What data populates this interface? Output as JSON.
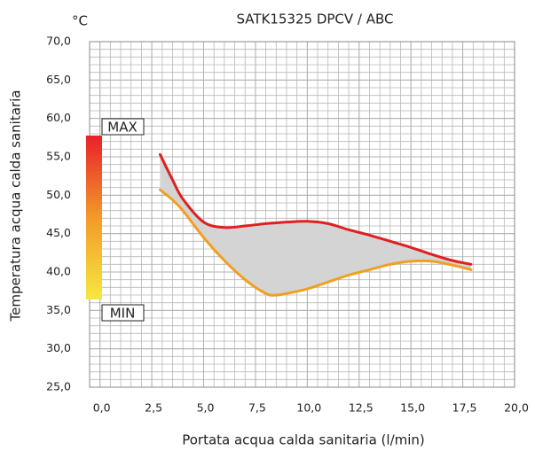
{
  "chart_data": {
    "type": "line",
    "title": "SATK15325 DPCV / ABC",
    "unit": "°C",
    "x_label": "Portata acqua calda sanitaria (l/min)",
    "y_label": "Temperatura acqua calda sanitaria",
    "scale_labels": [
      "MAX",
      "MIN"
    ],
    "x": [
      2.9,
      3.5,
      4,
      5,
      6,
      7,
      8,
      8.5,
      9,
      10,
      11,
      12,
      13,
      14,
      15,
      16,
      17,
      17.9
    ],
    "series": [
      {
        "color": "#e02020",
        "values": [
          55.3,
          52,
          49.5,
          46.5,
          45.8,
          46,
          46.3,
          46.4,
          46.5,
          46.6,
          46.3,
          45.5,
          44.8,
          44,
          43.2,
          42.3,
          41.5,
          41
        ]
      },
      {
        "color": "#f0a020",
        "values": [
          50.7,
          49.4,
          48,
          44.5,
          41.5,
          39,
          37.2,
          37,
          37.2,
          37.8,
          38.7,
          39.6,
          40.3,
          41,
          41.4,
          41.4,
          40.9,
          40.3
        ]
      }
    ],
    "fill_color": "#d4d4d4",
    "xlim": [
      -0.5,
      20
    ],
    "ylim": [
      25,
      70
    ],
    "xticks": [
      {
        "value": 0,
        "label": "0,0"
      },
      {
        "value": 2.5,
        "label": "2,5"
      },
      {
        "value": 5,
        "label": "5,0"
      },
      {
        "value": 7.5,
        "label": "7,5"
      },
      {
        "value": 10,
        "label": "10,0"
      },
      {
        "value": 12.5,
        "label": "12,5"
      },
      {
        "value": 15,
        "label": "15,0"
      },
      {
        "value": 17.5,
        "label": "17,5"
      },
      {
        "value": 20,
        "label": "20,0"
      }
    ],
    "yticks": [
      {
        "value": 25,
        "label": "25,0"
      },
      {
        "value": 30,
        "label": "30,0"
      },
      {
        "value": 35,
        "label": "35,0"
      },
      {
        "value": 40,
        "label": "40,0"
      },
      {
        "value": 45,
        "label": "45,0"
      },
      {
        "value": 50,
        "label": "50,0"
      },
      {
        "value": 55,
        "label": "55,0"
      },
      {
        "value": 60,
        "label": "60,0"
      },
      {
        "value": 65,
        "label": "65,0"
      },
      {
        "value": 70,
        "label": "70,0"
      }
    ],
    "grid": true
  }
}
